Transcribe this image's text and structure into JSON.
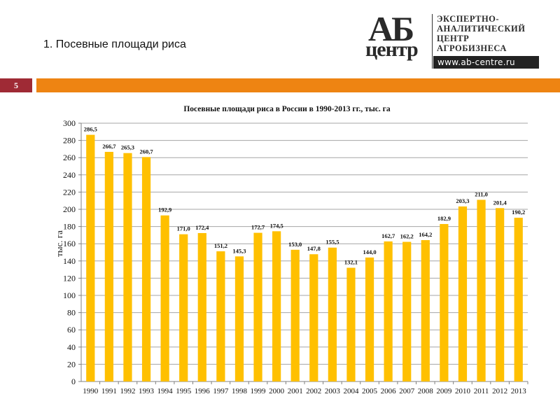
{
  "header": {
    "title": "1. Посевные площади риса",
    "page_number": "5"
  },
  "logo": {
    "ab": "АБ",
    "centr": "центр",
    "lines": [
      "ЭКСПЕРТНО-",
      "АНАЛИТИЧЕСКИЙ",
      "ЦЕНТР",
      "АГРОБИЗНЕСА"
    ],
    "url": "www.ab-centre.ru"
  },
  "colors": {
    "bar": "#FFC000",
    "page_badge": "#9F2A35",
    "accent_strip": "#EE8412",
    "grid": "#A6A6A6"
  },
  "chart_data": {
    "type": "bar",
    "title": "Посевные площади риса в России в 1990-2013 гг., тыс. га",
    "xlabel": "",
    "ylabel": "тыс. га",
    "ylim": [
      0,
      300
    ],
    "yticks": [
      0,
      20,
      40,
      60,
      80,
      100,
      120,
      140,
      160,
      180,
      200,
      220,
      240,
      260,
      280,
      300
    ],
    "grid": true,
    "legend": null,
    "categories": [
      "1990",
      "1991",
      "1992",
      "1993",
      "1994",
      "1995",
      "1996",
      "1997",
      "1998",
      "1999",
      "2000",
      "2001",
      "2002",
      "2003",
      "2004",
      "2005",
      "2006",
      "2007",
      "2008",
      "2009",
      "2010",
      "2011",
      "2012",
      "2013"
    ],
    "values": [
      286.5,
      266.7,
      265.3,
      260.7,
      192.9,
      171.0,
      172.4,
      151.2,
      145.3,
      172.7,
      174.5,
      153.0,
      147.8,
      155.5,
      132.1,
      144.0,
      162.7,
      162.2,
      164.2,
      182.9,
      203.3,
      211.0,
      201.4,
      190.2
    ],
    "value_labels": [
      "286,5",
      "266,7",
      "265,3",
      "260,7",
      "192,9",
      "171,0",
      "172,4",
      "151,2",
      "145,3",
      "172,7",
      "174,5",
      "153,0",
      "147,8",
      "155,5",
      "132,1",
      "144,0",
      "162,7",
      "162,2",
      "164,2",
      "182,9",
      "203,3",
      "211,0",
      "201,4",
      "190,2"
    ]
  }
}
